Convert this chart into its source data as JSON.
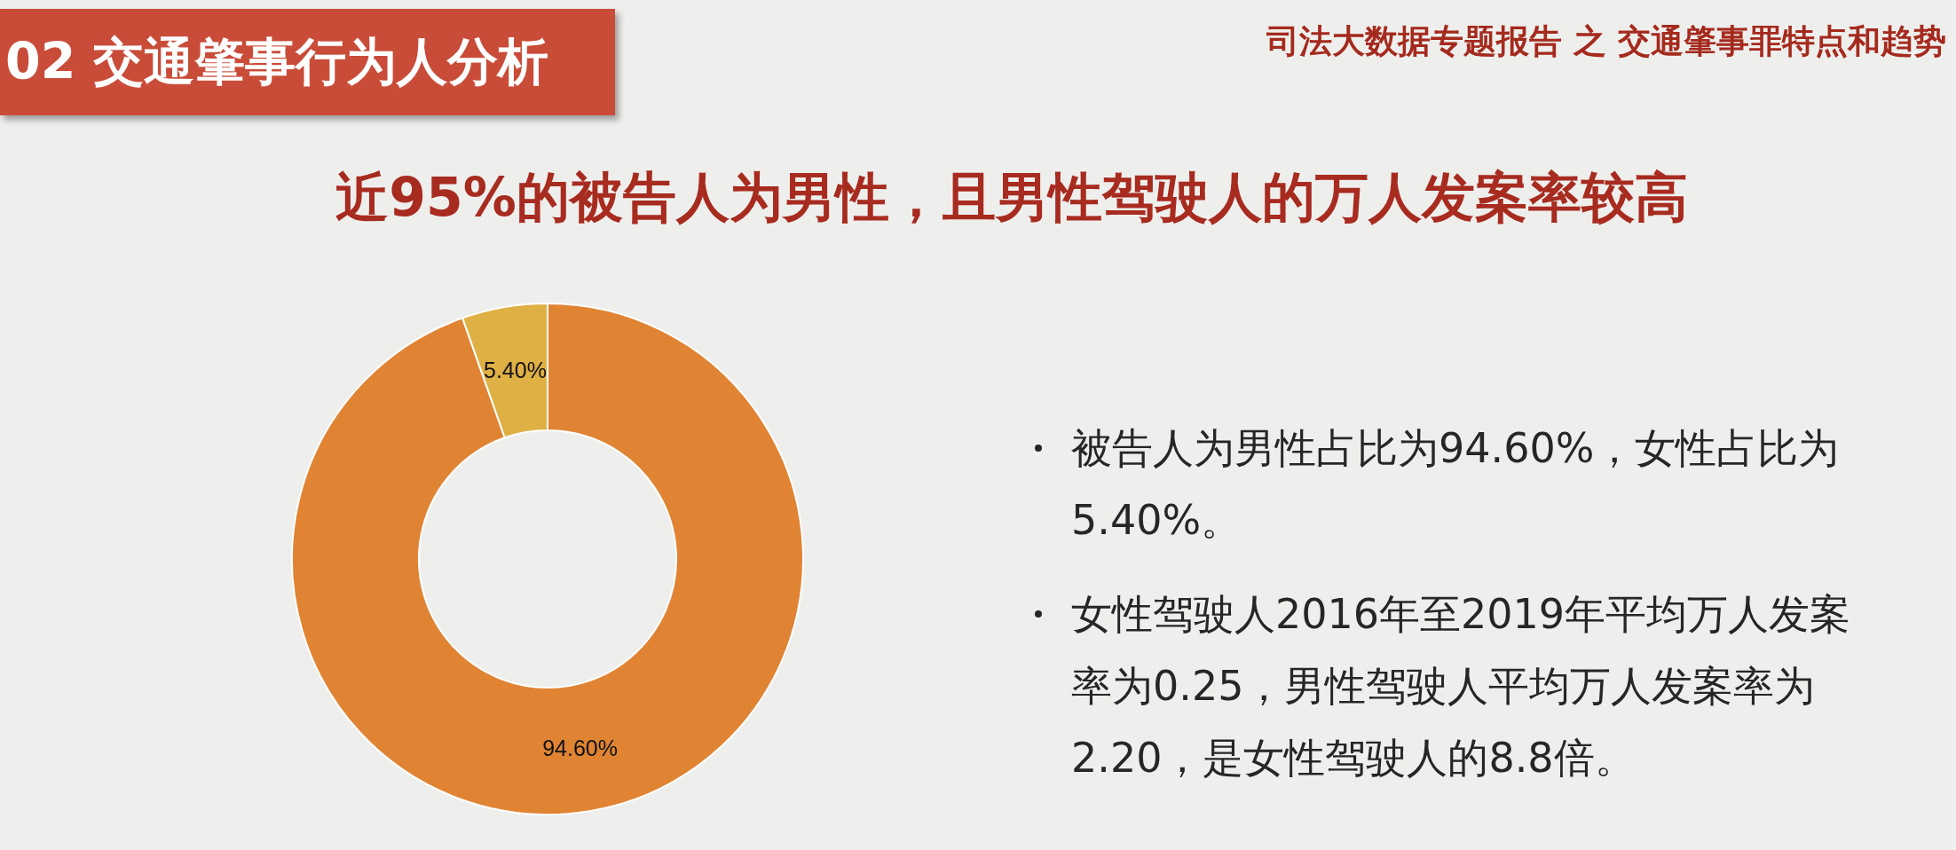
{
  "chart_data": {
    "type": "donut",
    "title": "近95%的被告人为男性，且男性驾驶人的万人发案率较高",
    "categories": [
      null,
      null
    ],
    "values": [
      94.6,
      5.4
    ],
    "colors": [
      "#e08434",
      "#dfb043"
    ],
    "value_labels": [
      "94.60%",
      "5.40%"
    ],
    "annotations": [
      "02 交通肇事行为人分析",
      "司法大数据专题报告 之 交通肇事罪特点和趋势",
      "被告人为男性占比为94.60%，女性占比为5.40%。",
      "女性驾驶人2016年至2019年平均万人发案率为0.25，男性驾驶人平均万人发案率为2.20，是女性驾驶人的8.8倍。"
    ]
  }
}
